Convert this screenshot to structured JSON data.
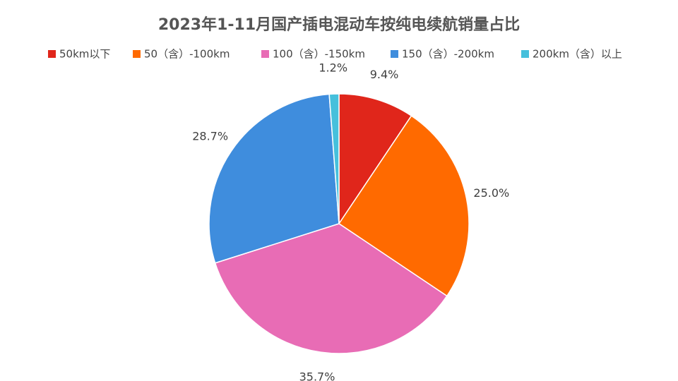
{
  "chart_data": {
    "type": "pie",
    "title": "2023年1-11月国产插电混动车按纯电续航销量占比",
    "categories": [
      "50km以下",
      "50（含）-100km",
      "100（含）-150km",
      "150（含）-200km",
      "200km（含）以上"
    ],
    "values": [
      9.4,
      25.0,
      35.7,
      28.7,
      1.2
    ],
    "value_labels": [
      "9.4%",
      "25.0%",
      "35.7%",
      "28.7%",
      "1.2%"
    ],
    "colors": [
      "#e0261b",
      "#ff6a00",
      "#e86cb5",
      "#3f8ddd",
      "#46c0dc"
    ]
  }
}
